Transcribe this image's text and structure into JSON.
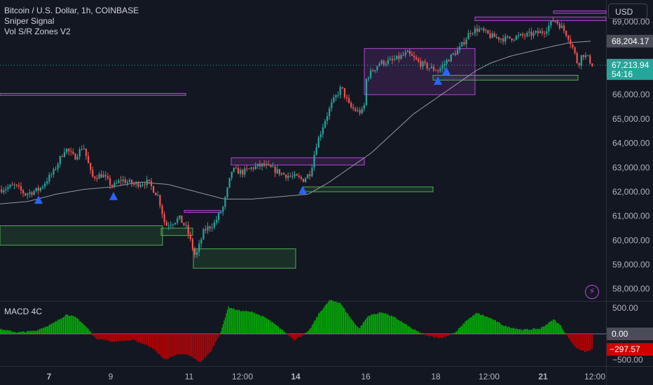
{
  "legend": {
    "symbol": "Bitcoin / U.S. Dollar, 1h, COINBASE",
    "indicator1": "Sniper Signal",
    "indicator2": "Vol S/R Zones V2"
  },
  "currency": "USD",
  "macd_label": "MACD 4C",
  "colors": {
    "background": "#131722",
    "up": "#26a69a",
    "down": "#ef5350",
    "resistance_zone": "#b446d6",
    "support_zone": "#4caf50",
    "signal_triangle": "#2962ff",
    "ma_line": "#9598a1",
    "macd_up": "#00c800",
    "macd_down": "#d10000"
  },
  "chart_data": [
    {
      "type": "candlestick",
      "title": "Bitcoin / U.S. Dollar, 1h, COINBASE",
      "ylim": [
        57500,
        69900
      ],
      "y_ticks": [
        "69,000.00",
        "66,000.00",
        "65,000.00",
        "64,000.00",
        "63,000.00",
        "62,000.00",
        "61,000.00",
        "60,000.00",
        "59,000.00",
        "58,000.00"
      ],
      "y_tick_values": [
        69000,
        66000,
        65000,
        64000,
        63000,
        62000,
        61000,
        60000,
        59000,
        58000
      ],
      "x_ticks": [
        {
          "label": "7",
          "bold": true,
          "t": 70
        },
        {
          "label": "9",
          "bold": false,
          "t": 158
        },
        {
          "label": "11",
          "bold": false,
          "t": 270
        },
        {
          "label": "12:00",
          "bold": false,
          "t": 346
        },
        {
          "label": "14",
          "bold": true,
          "t": 422
        },
        {
          "label": "16",
          "bold": false,
          "t": 522
        },
        {
          "label": "18",
          "bold": false,
          "t": 622
        },
        {
          "label": "12:00",
          "bold": false,
          "t": 698
        },
        {
          "label": "21",
          "bold": true,
          "t": 775
        },
        {
          "label": "12:00",
          "bold": false,
          "t": 849
        }
      ],
      "price_path": [
        [
          0,
          62100
        ],
        [
          20,
          62250
        ],
        [
          35,
          61900
        ],
        [
          55,
          62100
        ],
        [
          75,
          62800
        ],
        [
          92,
          63800
        ],
        [
          105,
          63400
        ],
        [
          118,
          63900
        ],
        [
          130,
          62600
        ],
        [
          145,
          62700
        ],
        [
          160,
          62200
        ],
        [
          172,
          62500
        ],
        [
          190,
          62300
        ],
        [
          210,
          62400
        ],
        [
          225,
          61800
        ],
        [
          235,
          60600
        ],
        [
          255,
          60900
        ],
        [
          265,
          60500
        ],
        [
          278,
          59300
        ],
        [
          290,
          60400
        ],
        [
          305,
          60700
        ],
        [
          318,
          61400
        ],
        [
          330,
          62900
        ],
        [
          345,
          62800
        ],
        [
          360,
          63000
        ],
        [
          375,
          63100
        ],
        [
          390,
          62900
        ],
        [
          405,
          62700
        ],
        [
          420,
          62600
        ],
        [
          432,
          62500
        ],
        [
          442,
          62800
        ],
        [
          450,
          63900
        ],
        [
          462,
          64900
        ],
        [
          472,
          65600
        ],
        [
          486,
          66300
        ],
        [
          498,
          65500
        ],
        [
          510,
          65300
        ],
        [
          518,
          65300
        ],
        [
          522,
          66700
        ],
        [
          540,
          67300
        ],
        [
          560,
          67400
        ],
        [
          580,
          67700
        ],
        [
          598,
          67300
        ],
        [
          612,
          67100
        ],
        [
          625,
          67000
        ],
        [
          640,
          67500
        ],
        [
          655,
          67900
        ],
        [
          670,
          68600
        ],
        [
          682,
          68700
        ],
        [
          700,
          68400
        ],
        [
          720,
          68300
        ],
        [
          740,
          68400
        ],
        [
          760,
          68500
        ],
        [
          775,
          68600
        ],
        [
          790,
          69100
        ],
        [
          800,
          68800
        ],
        [
          810,
          68400
        ],
        [
          818,
          67800
        ],
        [
          824,
          67200
        ],
        [
          830,
          67700
        ],
        [
          838,
          67500
        ],
        [
          845,
          67214
        ]
      ],
      "ma_path": [
        [
          0,
          61500
        ],
        [
          40,
          61600
        ],
        [
          80,
          61900
        ],
        [
          120,
          62100
        ],
        [
          160,
          62200
        ],
        [
          200,
          62400
        ],
        [
          240,
          62300
        ],
        [
          280,
          62000
        ],
        [
          320,
          61700
        ],
        [
          360,
          61700
        ],
        [
          400,
          61800
        ],
        [
          440,
          61900
        ],
        [
          470,
          62400
        ],
        [
          500,
          63000
        ],
        [
          530,
          63600
        ],
        [
          560,
          64400
        ],
        [
          590,
          65200
        ],
        [
          620,
          65800
        ],
        [
          650,
          66400
        ],
        [
          680,
          67000
        ],
        [
          700,
          67300
        ],
        [
          730,
          67600
        ],
        [
          760,
          67800
        ],
        [
          790,
          68000
        ],
        [
          815,
          68150
        ],
        [
          845,
          68204
        ]
      ],
      "zones": [
        {
          "kind": "resistance",
          "t1": 0,
          "t2": 265,
          "top": 66050,
          "bottom": 65970
        },
        {
          "kind": "support",
          "t1": 0,
          "t2": 232,
          "top": 60600,
          "bottom": 59800
        },
        {
          "kind": "resistance",
          "t1": 263,
          "t2": 315,
          "top": 61230,
          "bottom": 61150
        },
        {
          "kind": "support",
          "t1": 230,
          "t2": 275,
          "top": 60500,
          "bottom": 60200
        },
        {
          "kind": "support",
          "t1": 276,
          "t2": 422,
          "top": 59650,
          "bottom": 58850
        },
        {
          "kind": "resistance",
          "t1": 330,
          "t2": 520,
          "top": 63400,
          "bottom": 63100
        },
        {
          "kind": "support",
          "t1": 432,
          "t2": 618,
          "top": 62200,
          "bottom": 62000
        },
        {
          "kind": "resistance",
          "t1": 520,
          "t2": 678,
          "top": 67900,
          "bottom": 66000
        },
        {
          "kind": "support",
          "t1": 618,
          "t2": 825,
          "top": 66800,
          "bottom": 66600
        },
        {
          "kind": "resistance",
          "t1": 678,
          "t2": 865,
          "top": 69200,
          "bottom": 69050
        },
        {
          "kind": "resistance",
          "t1": 790,
          "t2": 865,
          "top": 69450,
          "bottom": 69350
        }
      ],
      "signals": [
        55,
        162,
        432,
        625,
        637
      ],
      "last_price": {
        "value": "67,213.94",
        "countdown": "54:16"
      },
      "ma_price": {
        "value": "68,204.17"
      }
    },
    {
      "type": "histogram",
      "title": "MACD 4C",
      "ylim": [
        -620,
        620
      ],
      "y_ticks": [
        "500.00",
        "0.00",
        "−500.00"
      ],
      "y_tick_values": [
        500,
        0,
        -500
      ],
      "current_value": "−297.57",
      "path": [
        [
          0,
          90
        ],
        [
          25,
          30
        ],
        [
          50,
          60
        ],
        [
          75,
          200
        ],
        [
          95,
          380
        ],
        [
          110,
          300
        ],
        [
          125,
          100
        ],
        [
          135,
          -80
        ],
        [
          160,
          -150
        ],
        [
          190,
          -120
        ],
        [
          215,
          -250
        ],
        [
          235,
          -500
        ],
        [
          255,
          -380
        ],
        [
          270,
          -420
        ],
        [
          285,
          -550
        ],
        [
          300,
          -350
        ],
        [
          315,
          50
        ],
        [
          325,
          520
        ],
        [
          340,
          450
        ],
        [
          360,
          420
        ],
        [
          380,
          300
        ],
        [
          400,
          100
        ],
        [
          420,
          -120
        ],
        [
          440,
          50
        ],
        [
          455,
          400
        ],
        [
          470,
          650
        ],
        [
          485,
          600
        ],
        [
          500,
          300
        ],
        [
          512,
          100
        ],
        [
          525,
          350
        ],
        [
          545,
          420
        ],
        [
          565,
          300
        ],
        [
          590,
          80
        ],
        [
          610,
          -40
        ],
        [
          630,
          -80
        ],
        [
          650,
          30
        ],
        [
          665,
          260
        ],
        [
          680,
          400
        ],
        [
          700,
          300
        ],
        [
          720,
          150
        ],
        [
          745,
          80
        ],
        [
          770,
          100
        ],
        [
          790,
          280
        ],
        [
          800,
          150
        ],
        [
          810,
          -60
        ],
        [
          820,
          -250
        ],
        [
          835,
          -350
        ],
        [
          845,
          -298
        ]
      ]
    }
  ]
}
